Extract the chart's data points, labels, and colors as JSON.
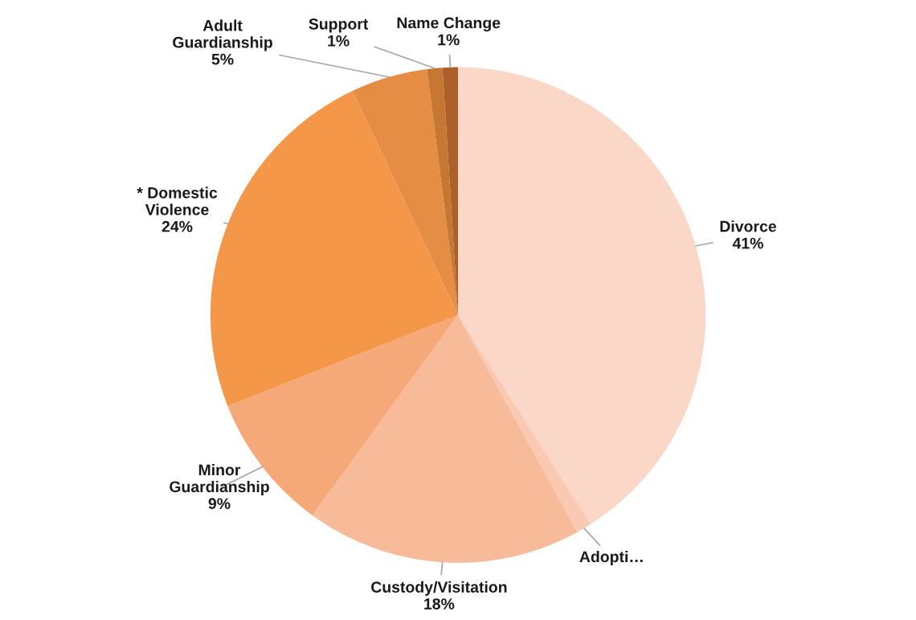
{
  "chart_data": {
    "type": "pie",
    "categories": [
      "Divorce",
      "Adopti…",
      "Custody/Visitation",
      "Minor\nGuardianship",
      "* Domestic\nViolence",
      "Adult\nGuardianship",
      "Support",
      "Name Change"
    ],
    "values": [
      41,
      1,
      18,
      9,
      24,
      5,
      1,
      1
    ],
    "value_labels": [
      "41%",
      null,
      "18%",
      "9%",
      "24%",
      "5%",
      "1%",
      "1%"
    ],
    "colors": [
      "#fad7c7",
      "#f9c9b1",
      "#f7bb9a",
      "#f5a878",
      "#f49748",
      "#e68d45",
      "#c87733",
      "#ad6029"
    ],
    "legend": false
  }
}
